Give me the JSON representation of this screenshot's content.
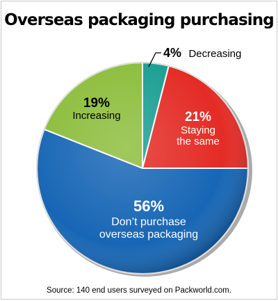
{
  "chart_data": {
    "type": "pie",
    "title": "Overseas packaging purchasing",
    "slices": [
      {
        "label": "Decreasing",
        "value": 4,
        "display": "4%",
        "color": "#1a9e92"
      },
      {
        "label": "Staying the same",
        "value": 21,
        "display": "21%",
        "color": "#e42b25"
      },
      {
        "label": "Don’t purchase overseas packaging",
        "value": 56,
        "display": "56%",
        "color": "#1766b5"
      },
      {
        "label": "Increasing",
        "value": 19,
        "display": "19%",
        "color": "#8cbd3b"
      }
    ],
    "labels": {
      "decreasing": {
        "pct": "4%",
        "text": "Decreasing"
      },
      "staying": {
        "pct": "21%",
        "line1": "Staying",
        "line2": "the same"
      },
      "dont": {
        "pct": "56%",
        "line1": "Don’t purchase",
        "line2": "overseas packaging"
      },
      "increasing": {
        "pct": "19%",
        "line1": "Increasing"
      }
    },
    "source": "Source: 140 end users surveyed on Packworld.com."
  }
}
